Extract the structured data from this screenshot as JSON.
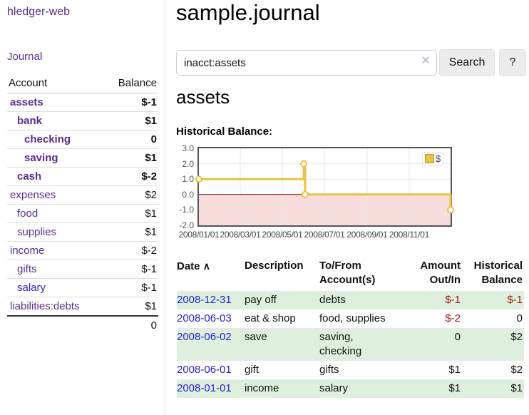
{
  "app": {
    "title": "hledger-web"
  },
  "colors": {
    "link_purple": "#5b2d90",
    "link_blue": "#2424cf",
    "negative": "#a31515",
    "muted_negative": "#c07f7f",
    "row_green": "#def0dd",
    "button_gray": "#ececec"
  },
  "sidebar": {
    "journal_link": "Journal",
    "accounts_table": {
      "headers": {
        "account": "Account",
        "balance": "Balance"
      },
      "rows": [
        {
          "account": "assets",
          "balance": "$-1"
        },
        {
          "account": "bank",
          "balance": "$1"
        },
        {
          "account": "checking",
          "balance": "0"
        },
        {
          "account": "saving",
          "balance": "$1"
        },
        {
          "account": "cash",
          "balance": "$-2"
        },
        {
          "account": "expenses",
          "balance": "$2"
        },
        {
          "account": "food",
          "balance": "$1"
        },
        {
          "account": "supplies",
          "balance": "$1"
        },
        {
          "account": "income",
          "balance": "$-2"
        },
        {
          "account": "gifts",
          "balance": "$-1"
        },
        {
          "account": "salary",
          "balance": "$-1"
        },
        {
          "account": "liabilities:debts",
          "balance": "$1"
        }
      ],
      "total": "0"
    }
  },
  "main": {
    "title": "sample.journal",
    "search": {
      "value": "inacct:assets",
      "clear_icon": "×",
      "button": "Search",
      "help_button": "?"
    },
    "account_heading": "assets",
    "chart_label": "Historical Balance:"
  },
  "chart_data": {
    "type": "line",
    "step": true,
    "series": [
      {
        "name": "$",
        "points": [
          {
            "date": "2008-01-01",
            "value": 1
          },
          {
            "date": "2008-06-01",
            "value": 2
          },
          {
            "date": "2008-06-03",
            "value": 0
          },
          {
            "date": "2008-12-31",
            "value": -1
          }
        ]
      }
    ],
    "ylim": [
      -2,
      3
    ],
    "y_ticks": [
      3.0,
      2.0,
      1.0,
      0.0,
      -1.0,
      -2.0
    ],
    "x_ticks": [
      "2008/01/01",
      "2008/03/01",
      "2008/05/01",
      "2008/07/01",
      "2008/09/01",
      "2008/11/01"
    ],
    "x_range": [
      "2008-01-01",
      "2008-12-31"
    ],
    "legend_position": "top-right",
    "grid": true,
    "colors": {
      "line": "#edc240",
      "negative_fill": "#f9dddd",
      "zero_line": "#8b0000",
      "grid": "#e6e6e6"
    }
  },
  "register": {
    "headers": {
      "date": "Date",
      "sort_asc_icon": "∧",
      "description": "Description",
      "accounts": "To/From\nAccount(s)",
      "amount": "Amount\nOut/In",
      "balance": "Historical\nBalance"
    },
    "rows": [
      {
        "date": "2008-12-31",
        "description": "pay off",
        "accounts": "debts",
        "amount": "$-1",
        "balance": "$-1"
      },
      {
        "date": "2008-06-03",
        "description": "eat & shop",
        "accounts": "food, supplies",
        "amount": "$-2",
        "balance": "0"
      },
      {
        "date": "2008-06-02",
        "description": "save",
        "accounts": "saving,\nchecking",
        "amount": "0",
        "balance": "$2"
      },
      {
        "date": "2008-06-01",
        "description": "gift",
        "accounts": "gifts",
        "amount": "$1",
        "balance": "$2"
      },
      {
        "date": "2008-01-01",
        "description": "income",
        "accounts": "salary",
        "amount": "$1",
        "balance": "$1"
      }
    ]
  }
}
